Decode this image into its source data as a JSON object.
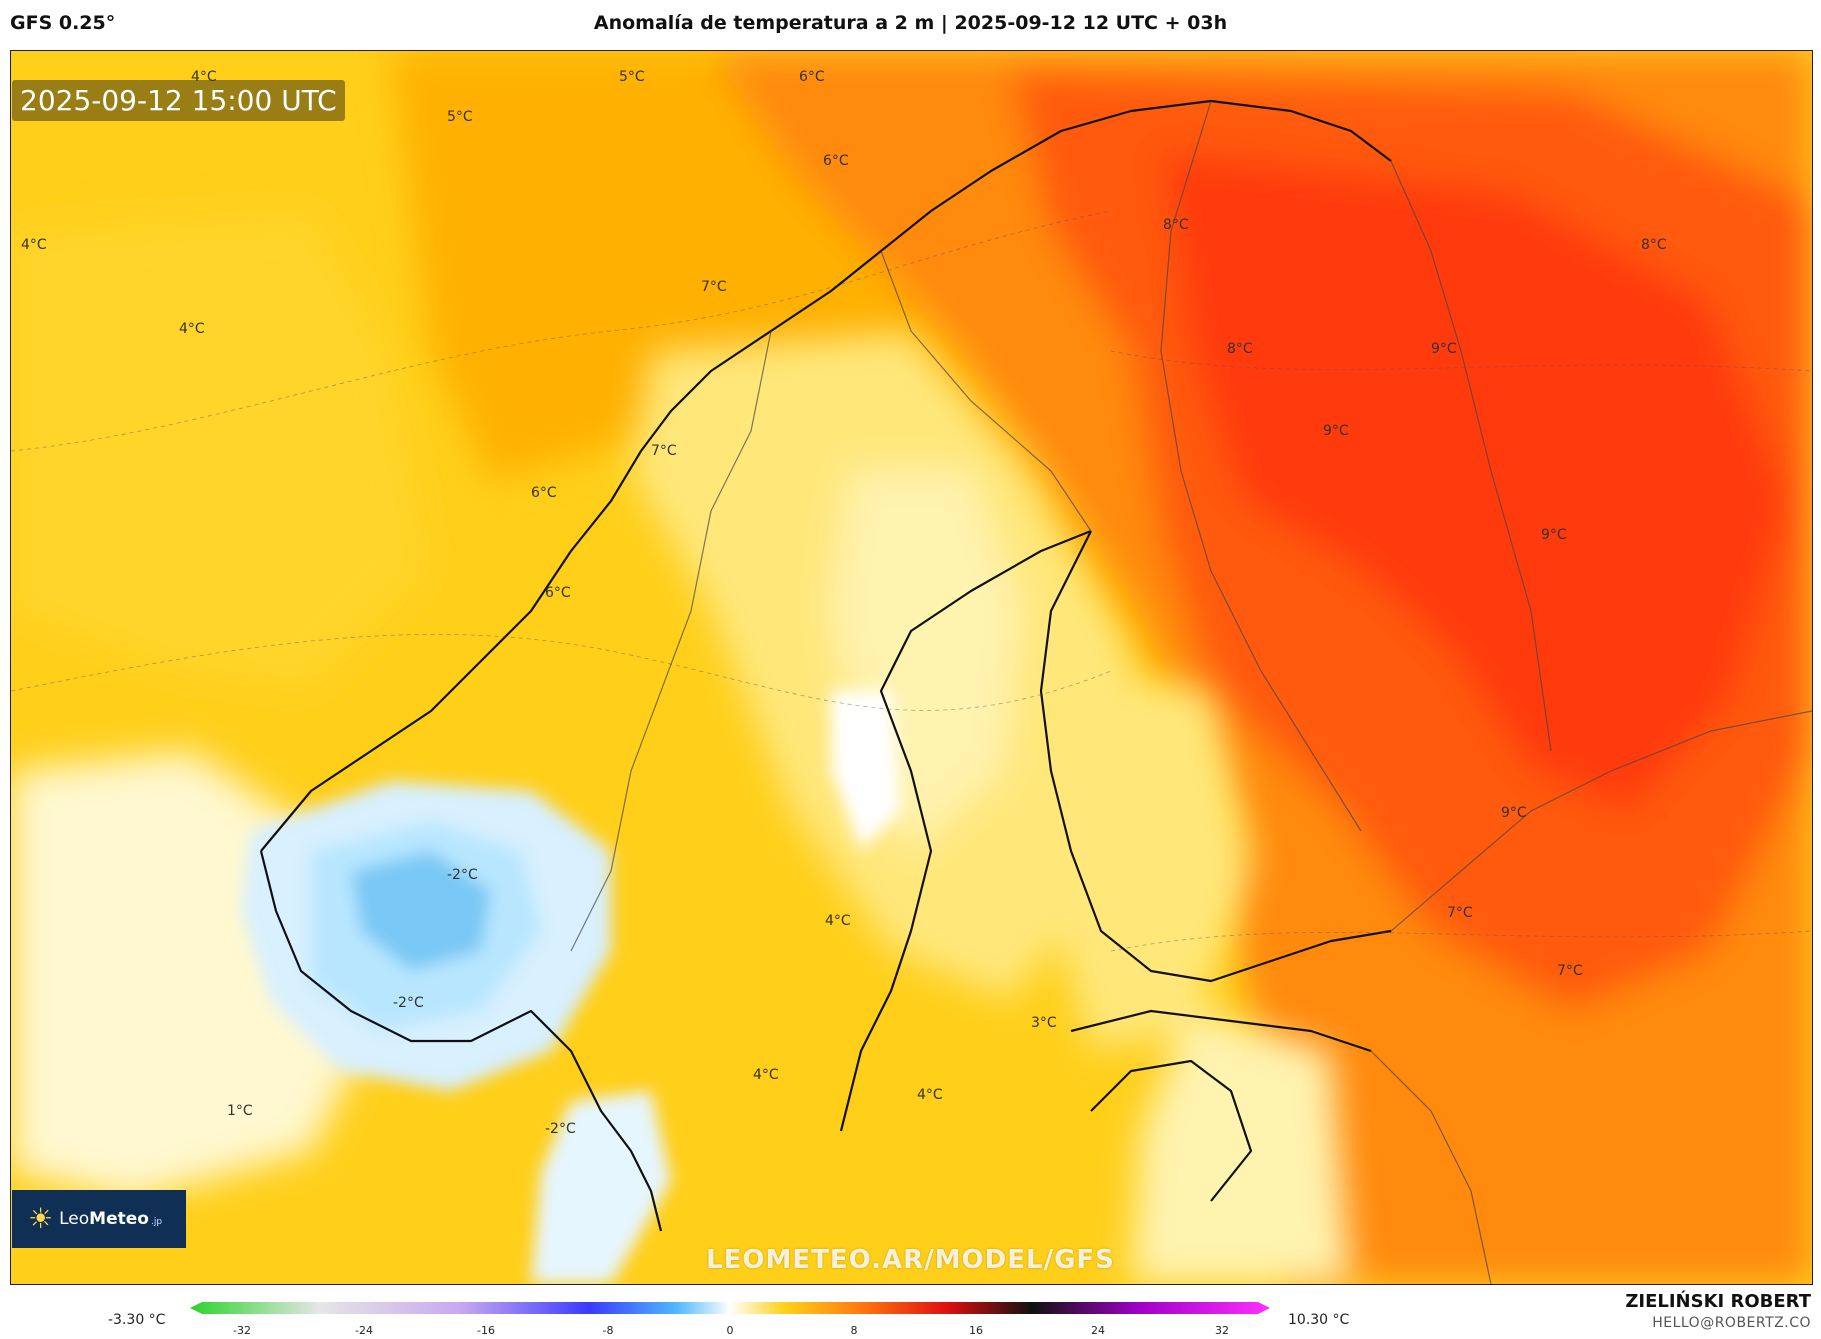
{
  "header": {
    "model": "GFS 0.25°",
    "title": "Anomalía de temperatura a 2 m | 2025-09-12 12 UTC + 03h"
  },
  "map": {
    "valid_time": "2025-09-12 15:00 UTC",
    "watermark": "LEOMETEO.AR/MODEL/GFS",
    "labels": [
      "4°C",
      "5°C",
      "6°C",
      "5°C",
      "6°C",
      "4°C",
      "4°C",
      "8°C",
      "8°C",
      "8°C",
      "9°C",
      "9°C",
      "9°C",
      "7°C",
      "6°C",
      "6°C",
      "7°C",
      "-2°C",
      "-2°C",
      "4°C",
      "3°C",
      "4°C",
      "4°C",
      "1°C",
      "-2°C",
      "7°C",
      "7°C",
      "9°C"
    ],
    "colors": {
      "warm_strong": "#ff3a10",
      "warm_mid": "#ff8a10",
      "warm_low": "#ffb000",
      "neutral": "#ffd21a",
      "pale": "#fff3b0",
      "cold": "#b8e6ff",
      "cold_strong": "#79c8f5"
    }
  },
  "logo": {
    "name_light": "Leo",
    "name_bold": "Meteo",
    "suffix": ".jp",
    "icon": "sun-icon"
  },
  "colorbar": {
    "min_label": "-3.30 °C",
    "max_label": "10.30 °C",
    "ticks": [
      "-32",
      "-24",
      "-16",
      "-8",
      "0",
      "8",
      "16",
      "24",
      "32"
    ]
  },
  "credits": {
    "author": "ZIELIŃSKI ROBERT",
    "email": "HELLO@ROBERTZ.CO"
  }
}
